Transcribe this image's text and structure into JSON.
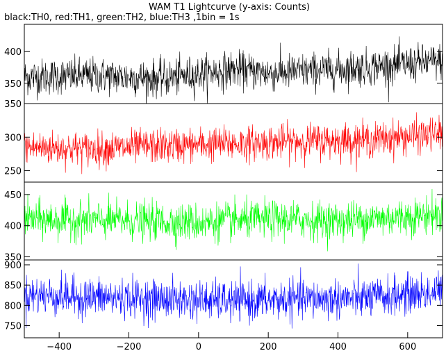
{
  "chart_data": {
    "type": "line",
    "title": "WAM T1 Lightcurve (y-axis: Counts)",
    "subtitle": "black:TH0, red:TH1, green:TH2, blue:TH3 ,1bin = 1s",
    "xlim": [
      -500,
      700
    ],
    "x_ticks": [
      -400,
      -200,
      0,
      200,
      400,
      600
    ],
    "bin_seconds": 1,
    "panels": [
      {
        "series_name": "TH0",
        "color": "#000000",
        "ylim": [
          318,
          443
        ],
        "y_ticks": [
          350,
          400
        ],
        "mean_anchors": [
          [
            -500,
            360
          ],
          [
            -300,
            362
          ],
          [
            -100,
            357
          ],
          [
            100,
            372
          ],
          [
            200,
            366
          ],
          [
            400,
            372
          ],
          [
            550,
            378
          ],
          [
            700,
            385
          ]
        ],
        "noise_amplitude": 19
      },
      {
        "series_name": "TH1",
        "color": "#ff0000",
        "ylim": [
          233,
          350
        ],
        "y_ticks": [
          250,
          300,
          350
        ],
        "mean_anchors": [
          [
            -500,
            285
          ],
          [
            -300,
            282
          ],
          [
            -100,
            287
          ],
          [
            100,
            290
          ],
          [
            300,
            294
          ],
          [
            500,
            296
          ],
          [
            700,
            305
          ]
        ],
        "noise_amplitude": 17
      },
      {
        "series_name": "TH2",
        "color": "#00ff00",
        "ylim": [
          345,
          470
        ],
        "y_ticks": [
          350,
          400,
          450
        ],
        "mean_anchors": [
          [
            -500,
            410
          ],
          [
            -200,
            408
          ],
          [
            0,
            405
          ],
          [
            200,
            410
          ],
          [
            400,
            408
          ],
          [
            700,
            418
          ]
        ],
        "noise_amplitude": 20
      },
      {
        "series_name": "TH3",
        "color": "#0000ff",
        "ylim": [
          720,
          912
        ],
        "y_ticks": [
          750,
          800,
          850,
          900
        ],
        "mean_anchors": [
          [
            -500,
            825
          ],
          [
            -300,
            820
          ],
          [
            -100,
            815
          ],
          [
            100,
            810
          ],
          [
            300,
            815
          ],
          [
            500,
            818
          ],
          [
            700,
            835
          ]
        ],
        "noise_amplitude": 32
      }
    ]
  }
}
